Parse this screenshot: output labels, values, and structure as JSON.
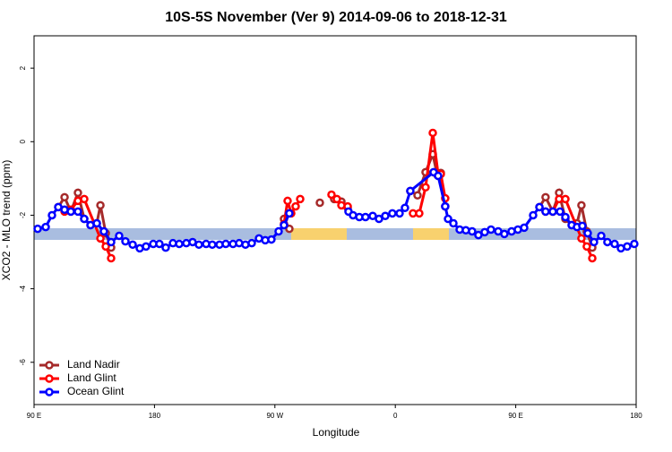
{
  "chart_data": {
    "type": "line",
    "title": "10S-5S November (Ver 9)   2014-09-06 to 2018-12-31",
    "x_label": "Longitude",
    "y_label": "XCO2 - MLO trend (ppm)",
    "xlim": [
      90,
      540
    ],
    "xticks": [
      {
        "value": 90,
        "label": "90 E"
      },
      {
        "value": 180,
        "label": "180"
      },
      {
        "value": 270,
        "label": "90 W"
      },
      {
        "value": 360,
        "label": "0"
      },
      {
        "value": 450,
        "label": "90 E"
      },
      {
        "value": 540,
        "label": "180"
      }
    ],
    "ylim": [
      -7.15,
      2.88
    ],
    "yticks": [
      2,
      0,
      -2,
      -4,
      -6
    ],
    "legend": "bottomleft",
    "series": [
      {
        "name": "Land Nadir",
        "color": "#a52a2a",
        "x": [
          108.1,
          112.8,
          117.5,
          122.8,
          127.5,
          132.2,
          136.9,
          139.6,
          143.6,
          147.6,
          200,
          276.8,
          280.8,
          290,
          303.6,
          306,
          314.3,
          319.7,
          324.4,
          340,
          371.2,
          376.6,
          382.6,
          388.0,
          391.3,
          394.0,
          397.3,
          430,
          467.7,
          472.3,
          477.7,
          482.4,
          487.1,
          491.8,
          495.8,
          499.1,
          503.1,
          507.2
        ],
        "values": [
          -1.78,
          -1.51,
          -1.9,
          -1.39,
          -2.1,
          -2.27,
          -2.22,
          -1.73,
          -2.49,
          -2.88,
          null,
          -2.1,
          -2.37,
          null,
          -1.66,
          null,
          -1.56,
          -1.63,
          -1.8,
          null,
          -1.34,
          -1.46,
          -0.83,
          -0.34,
          -0.9,
          -0.85,
          -1.76,
          null,
          -1.78,
          -1.51,
          -1.9,
          -1.39,
          -2.1,
          -2.27,
          -2.22,
          -1.73,
          -2.44,
          -2.88
        ]
      },
      {
        "name": "Land Glint",
        "color": "#ff0000",
        "x": [
          112.8,
          117.5,
          122.8,
          127.5,
          139.6,
          143.6,
          147.6,
          200,
          276.8,
          279.5,
          282.2,
          285.5,
          288.9,
          300,
          312.3,
          316.3,
          319.7,
          324.4,
          340,
          373.2,
          377.9,
          382.6,
          388.0,
          392.0,
          394.0,
          397.3,
          430,
          472.3,
          477.7,
          482.4,
          487.1,
          499.1,
          503.1,
          507.2
        ],
        "values": [
          -1.9,
          -1.85,
          -1.61,
          -1.56,
          -2.63,
          -2.85,
          -3.17,
          null,
          -2.24,
          -1.61,
          -1.95,
          -1.76,
          -1.56,
          null,
          -1.44,
          -1.56,
          -1.73,
          -1.76,
          null,
          -1.95,
          -1.95,
          -1.24,
          0.24,
          -0.88,
          -0.88,
          -1.54,
          null,
          -1.9,
          -1.9,
          -1.56,
          -1.56,
          -2.63,
          -2.85,
          -3.17
        ]
      },
      {
        "name": "Ocean Glint",
        "color": "#0000ff",
        "x": [
          92.7,
          98.7,
          103.4,
          108.1,
          112.8,
          117.5,
          122.8,
          127.5,
          132.2,
          136.9,
          142.2,
          147.6,
          153.6,
          158.3,
          163.7,
          169.0,
          173.7,
          179.1,
          183.7,
          188.4,
          193.8,
          198.5,
          203.8,
          208.5,
          213.2,
          218.6,
          223.2,
          228.6,
          233.3,
          238.7,
          243.3,
          248.0,
          252.7,
          258.1,
          262.8,
          267.4,
          272.8,
          276.8,
          280.8,
          300,
          325.0,
          328.4,
          333.1,
          337.7,
          343.1,
          347.8,
          352.5,
          357.8,
          363.2,
          367.2,
          371.2,
          388.6,
          392.0,
          397.3,
          399.4,
          403.4,
          408.1,
          412.7,
          417.4,
          422.1,
          426.8,
          431.5,
          436.9,
          441.5,
          446.9,
          451.6,
          456.3,
          463.0,
          467.7,
          472.3,
          477.7,
          483.1,
          487.1,
          491.8,
          495.8,
          499.8,
          503.8,
          508.5,
          513.9,
          518.5,
          523.9,
          528.6,
          533.3,
          538.6
        ],
        "values": [
          -2.37,
          -2.32,
          -2.0,
          -1.78,
          -1.85,
          -1.9,
          -1.9,
          -2.1,
          -2.27,
          -2.22,
          -2.44,
          -2.73,
          -2.56,
          -2.71,
          -2.8,
          -2.9,
          -2.85,
          -2.78,
          -2.78,
          -2.88,
          -2.76,
          -2.78,
          -2.76,
          -2.73,
          -2.8,
          -2.78,
          -2.8,
          -2.8,
          -2.78,
          -2.78,
          -2.76,
          -2.8,
          -2.76,
          -2.63,
          -2.68,
          -2.66,
          -2.44,
          -2.27,
          -1.95,
          null,
          -1.9,
          -2.0,
          -2.05,
          -2.05,
          -2.02,
          -2.1,
          -2.02,
          -1.95,
          -1.95,
          -1.8,
          -1.34,
          -0.83,
          -0.93,
          -1.76,
          -2.1,
          -2.22,
          -2.39,
          -2.41,
          -2.44,
          -2.54,
          -2.46,
          -2.39,
          -2.44,
          -2.51,
          -2.44,
          -2.39,
          -2.34,
          -2.0,
          -1.78,
          -1.9,
          -1.9,
          -1.9,
          -2.05,
          -2.27,
          -2.32,
          -2.29,
          -2.49,
          -2.73,
          -2.56,
          -2.73,
          -2.78,
          -2.9,
          -2.85,
          -2.78
        ]
      }
    ]
  }
}
